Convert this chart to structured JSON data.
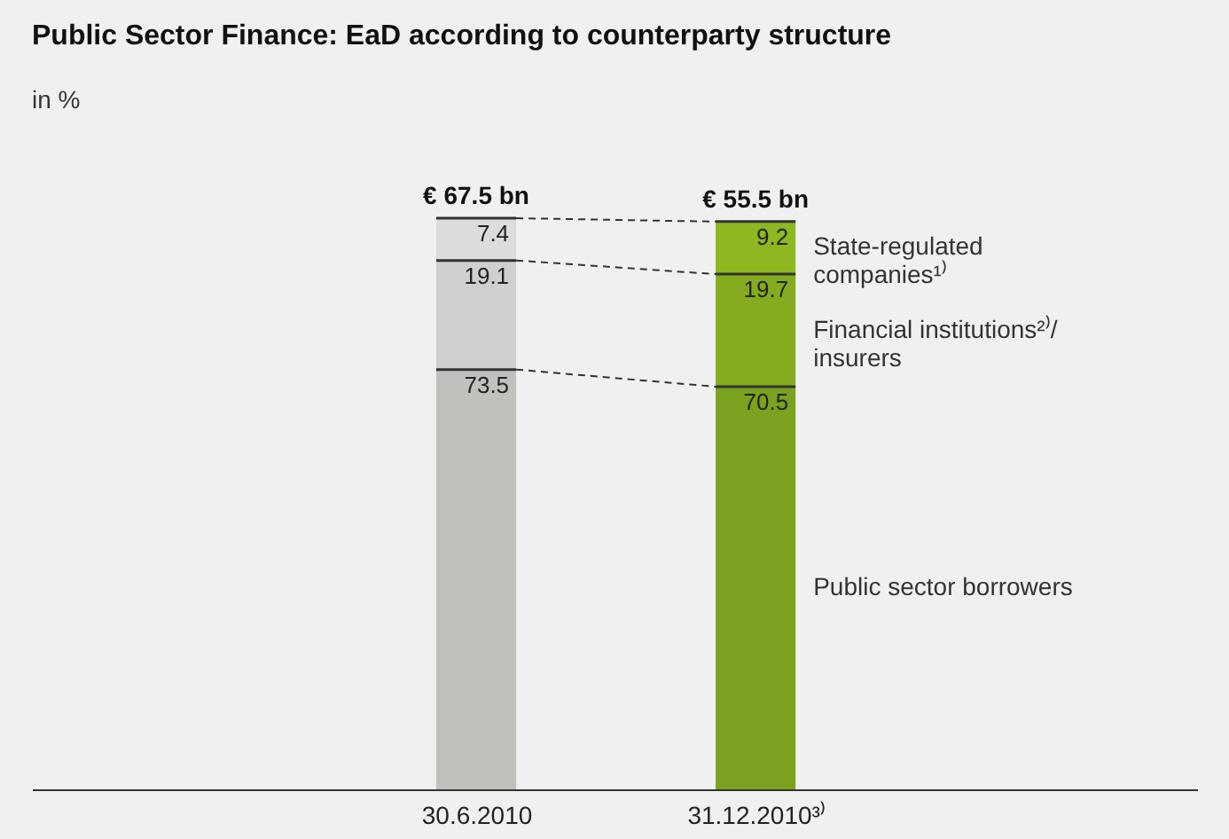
{
  "chart_data": {
    "type": "bar",
    "title": "Public Sector Finance: EaD according to counterparty structure",
    "subtitle": "in %",
    "categories": [
      "30.6.2010",
      "31.12.2010³⁾"
    ],
    "stacked": true,
    "data_labels": true,
    "grid": false,
    "series": [
      {
        "name": "Public sector borrowers",
        "colors": [
          "#c0c0bd",
          "#7aa21e"
        ],
        "values": [
          73.5,
          70.5
        ]
      },
      {
        "name": "Financial institutions²⁾/ insurers",
        "colors": [
          "#cfcfcf",
          "#84ac1e"
        ],
        "values": [
          19.1,
          19.7
        ]
      },
      {
        "name": "State-regulated companies¹⁾",
        "colors": [
          "#dcdcdc",
          "#8db820"
        ],
        "values": [
          7.4,
          9.2
        ]
      }
    ],
    "annotations": [
      "€ 67.5 bn",
      "€ 55.5 bn"
    ]
  }
}
